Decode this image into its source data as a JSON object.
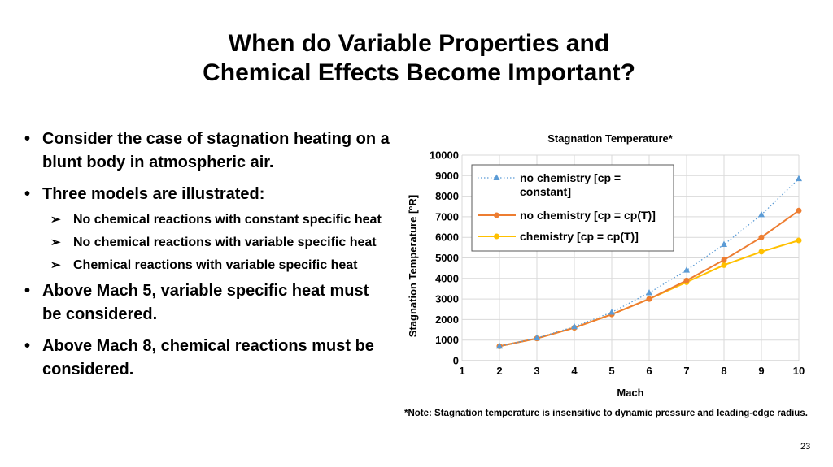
{
  "slide": {
    "title_line1": "When do Variable Properties and",
    "title_line2": "Chemical Effects Become Important?",
    "bullets": [
      "Consider the case of stagnation heating on a blunt body in atmospheric air.",
      "Three models are illustrated:",
      "Above Mach 5, variable specific heat must be considered.",
      "Above Mach 8, chemical reactions must be considered."
    ],
    "sub_bullets": [
      "No chemical reactions with constant specific heat",
      "No chemical reactions with variable specific heat",
      "Chemical reactions with variable specific heat"
    ],
    "note": "*Note:  Stagnation temperature is insensitive to dynamic pressure and leading-edge radius.",
    "page_number": "23"
  },
  "chart_data": {
    "type": "line",
    "title": "Stagnation Temperature*",
    "xlabel": "Mach",
    "ylabel": "Stagnation Temperature [°R]",
    "xlim": [
      1,
      10
    ],
    "ylim": [
      0,
      10000
    ],
    "xticks": [
      1,
      2,
      3,
      4,
      5,
      6,
      7,
      8,
      9,
      10
    ],
    "yticks": [
      0,
      1000,
      2000,
      3000,
      4000,
      5000,
      6000,
      7000,
      8000,
      9000,
      10000
    ],
    "grid": true,
    "legend_position": "top-left",
    "x": [
      2,
      3,
      4,
      5,
      6,
      7,
      8,
      9,
      10
    ],
    "series": [
      {
        "name": "no chemistry [cp = constant]",
        "color": "#5b9bd5",
        "style": "dotted",
        "marker": "triangle",
        "values": [
          700,
          1100,
          1650,
          2350,
          3300,
          4400,
          5650,
          7100,
          8850
        ]
      },
      {
        "name": "no chemistry [cp = cp(T)]",
        "color": "#ed7d31",
        "style": "solid",
        "marker": "circle",
        "values": [
          700,
          1080,
          1600,
          2250,
          3000,
          3900,
          4900,
          6000,
          7300
        ]
      },
      {
        "name": "chemistry [cp = cp(T)]",
        "color": "#ffc000",
        "style": "solid",
        "marker": "circle",
        "values": [
          700,
          1080,
          1600,
          2250,
          3000,
          3820,
          4650,
          5300,
          5850
        ]
      }
    ]
  }
}
